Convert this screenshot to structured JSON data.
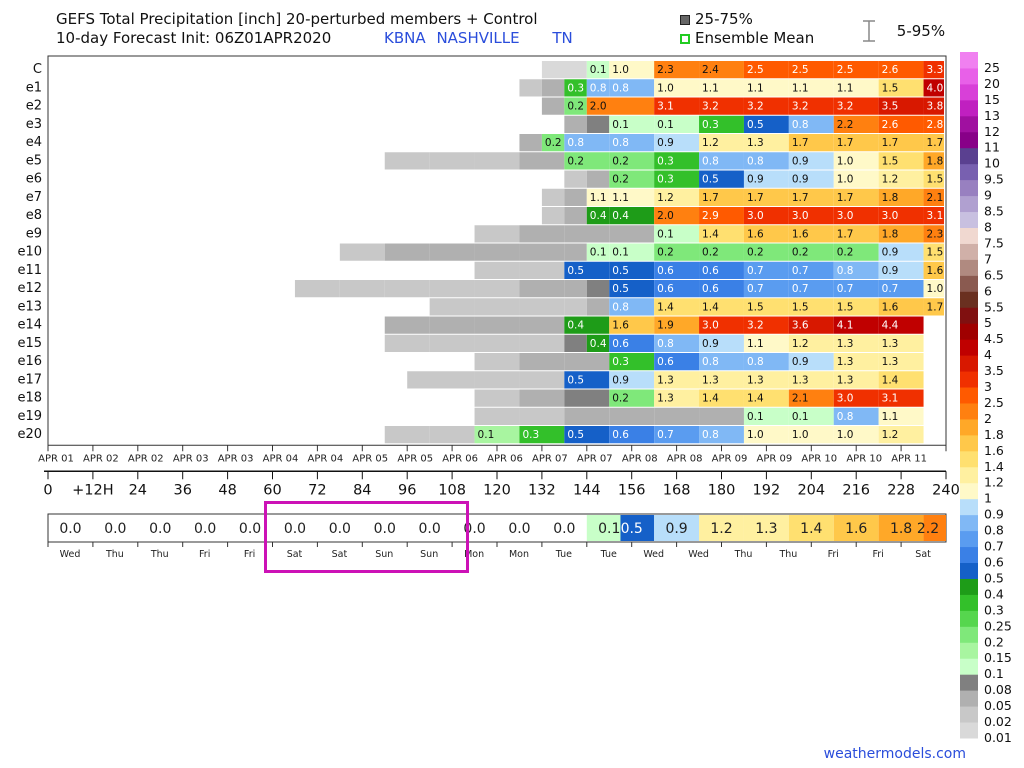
{
  "header": {
    "title_line1": "GEFS Total Precipitation [inch]  20-perturbed members + Control",
    "title_line2": "10-day Forecast Init: 06Z01APR2020",
    "station_code": "KBNA",
    "station_name": "NASHVILLE",
    "state": "TN"
  },
  "legend": {
    "iqr_label": "25-75%",
    "mean_label": "Ensemble Mean",
    "range_label": "5-95%"
  },
  "credit": "weathermodels.com",
  "chart_data": {
    "type": "heatmap",
    "members": [
      "C",
      "e1",
      "e2",
      "e3",
      "e4",
      "e5",
      "e6",
      "e7",
      "e8",
      "e9",
      "e10",
      "e11",
      "e12",
      "e13",
      "e14",
      "e15",
      "e16",
      "e17",
      "e18",
      "e19",
      "e20"
    ],
    "date_labels": [
      "APR 01",
      "APR 02",
      "APR 02",
      "APR 03",
      "APR 03",
      "APR 04",
      "APR 04",
      "APR 05",
      "APR 05",
      "APR 06",
      "APR 06",
      "APR 07",
      "APR 07",
      "APR 08",
      "APR 08",
      "APR 09",
      "APR 09",
      "APR 10",
      "APR 10",
      "APR 11"
    ],
    "hour_labels": [
      "0",
      "+12H",
      "24",
      "36",
      "48",
      "60",
      "72",
      "84",
      "96",
      "108",
      "120",
      "132",
      "144",
      "156",
      "168",
      "180",
      "192",
      "204",
      "216",
      "228",
      "240"
    ],
    "day_labels": [
      "Wed",
      "Thu",
      "Thu",
      "Fri",
      "Fri",
      "Sat",
      "Sat",
      "Sun",
      "Sun",
      "Mon",
      "Mon",
      "Tue",
      "Tue",
      "Wed",
      "Wed",
      "Thu",
      "Thu",
      "Fri",
      "Fri",
      "Sat"
    ],
    "mean_values": [
      "0.0",
      "0.0",
      "0.0",
      "0.0",
      "0.0",
      "0.0",
      "0.0",
      "0.0",
      "0.0",
      "0.0",
      "0.0",
      "0.0",
      "0.1",
      "0.5",
      "0.9",
      "1.2",
      "1.3",
      "1.4",
      "1.6",
      "1.8",
      "2.2"
    ],
    "mean_hours": [
      6,
      18,
      30,
      42,
      54,
      66,
      78,
      90,
      102,
      114,
      126,
      138,
      150,
      156,
      168,
      180,
      192,
      204,
      216,
      228,
      240
    ],
    "members_data": [
      {
        "id": "C",
        "cells": [
          [
            138,
            0.01
          ],
          [
            150,
            0.1
          ],
          [
            156,
            1.0
          ],
          [
            168,
            2.3
          ],
          [
            180,
            2.4
          ],
          [
            192,
            2.5
          ],
          [
            204,
            2.5
          ],
          [
            216,
            2.5
          ],
          [
            228,
            2.6
          ],
          [
            240,
            3.3
          ]
        ]
      },
      {
        "id": "e1",
        "cells": [
          [
            132,
            0.03
          ],
          [
            138,
            0.07
          ],
          [
            144,
            0.3
          ],
          [
            150,
            0.8
          ],
          [
            156,
            0.8
          ],
          [
            168,
            1.0
          ],
          [
            180,
            1.1
          ],
          [
            192,
            1.1
          ],
          [
            204,
            1.1
          ],
          [
            216,
            1.1
          ],
          [
            228,
            1.5
          ],
          [
            240,
            4.0
          ]
        ]
      },
      {
        "id": "e2",
        "cells": [
          [
            138,
            0.05
          ],
          [
            144,
            0.2
          ],
          [
            150,
            2.0
          ],
          [
            168,
            3.1
          ],
          [
            180,
            3.2
          ],
          [
            192,
            3.2
          ],
          [
            204,
            3.2
          ],
          [
            216,
            3.2
          ],
          [
            228,
            3.5
          ],
          [
            240,
            3.8
          ]
        ]
      },
      {
        "id": "e3",
        "cells": [
          [
            144,
            0.05
          ],
          [
            150,
            0.08
          ],
          [
            156,
            0.1
          ],
          [
            168,
            0.1
          ],
          [
            180,
            0.3
          ],
          [
            192,
            0.5
          ],
          [
            204,
            0.8
          ],
          [
            216,
            2.2
          ],
          [
            228,
            2.6
          ],
          [
            240,
            2.8
          ]
        ]
      },
      {
        "id": "e4",
        "cells": [
          [
            132,
            0.05
          ],
          [
            138,
            0.2
          ],
          [
            144,
            0.8
          ],
          [
            156,
            0.8
          ],
          [
            168,
            0.9
          ],
          [
            180,
            1.2
          ],
          [
            192,
            1.3
          ],
          [
            204,
            1.7
          ],
          [
            216,
            1.7
          ],
          [
            228,
            1.7
          ],
          [
            240,
            1.7
          ]
        ]
      },
      {
        "id": "e5",
        "cells": [
          [
            96,
            0.03
          ],
          [
            108,
            0.03
          ],
          [
            120,
            0.03
          ],
          [
            132,
            0.05
          ],
          [
            144,
            0.2
          ],
          [
            156,
            0.2
          ],
          [
            168,
            0.3
          ],
          [
            180,
            0.8
          ],
          [
            192,
            0.8
          ],
          [
            204,
            0.9
          ],
          [
            216,
            1.0
          ],
          [
            228,
            1.5
          ],
          [
            240,
            1.8
          ]
        ]
      },
      {
        "id": "e6",
        "cells": [
          [
            144,
            0.03
          ],
          [
            150,
            0.05
          ],
          [
            156,
            0.2
          ],
          [
            168,
            0.3
          ],
          [
            180,
            0.5
          ],
          [
            192,
            0.9
          ],
          [
            204,
            0.9
          ],
          [
            216,
            1.0
          ],
          [
            228,
            1.2
          ],
          [
            240,
            1.5
          ]
        ]
      },
      {
        "id": "e7",
        "cells": [
          [
            138,
            0.03
          ],
          [
            144,
            0.05
          ],
          [
            150,
            1.1
          ],
          [
            156,
            1.1
          ],
          [
            168,
            1.2
          ],
          [
            180,
            1.7
          ],
          [
            192,
            1.7
          ],
          [
            204,
            1.7
          ],
          [
            216,
            1.7
          ],
          [
            228,
            1.8
          ],
          [
            240,
            2.1
          ]
        ]
      },
      {
        "id": "e8",
        "cells": [
          [
            138,
            0.02
          ],
          [
            144,
            0.05
          ],
          [
            150,
            0.4
          ],
          [
            156,
            0.4
          ],
          [
            168,
            2.0
          ],
          [
            180,
            2.9
          ],
          [
            192,
            3.0
          ],
          [
            204,
            3.0
          ],
          [
            216,
            3.0
          ],
          [
            228,
            3.0
          ],
          [
            240,
            3.1
          ]
        ]
      },
      {
        "id": "e9",
        "cells": [
          [
            120,
            0.03
          ],
          [
            132,
            0.05
          ],
          [
            144,
            0.05
          ],
          [
            156,
            0.05
          ],
          [
            168,
            0.1
          ],
          [
            180,
            1.4
          ],
          [
            192,
            1.6
          ],
          [
            204,
            1.6
          ],
          [
            216,
            1.7
          ],
          [
            228,
            1.8
          ],
          [
            240,
            2.3
          ]
        ]
      },
      {
        "id": "e10",
        "cells": [
          [
            84,
            0.02
          ],
          [
            96,
            0.05
          ],
          [
            108,
            0.05
          ],
          [
            120,
            0.05
          ],
          [
            132,
            0.05
          ],
          [
            144,
            0.05
          ],
          [
            150,
            0.1
          ],
          [
            156,
            0.1
          ],
          [
            168,
            0.2
          ],
          [
            180,
            0.2
          ],
          [
            192,
            0.2
          ],
          [
            204,
            0.2
          ],
          [
            216,
            0.2
          ],
          [
            228,
            0.9
          ],
          [
            240,
            1.5
          ]
        ]
      },
      {
        "id": "e11",
        "cells": [
          [
            120,
            0.03
          ],
          [
            132,
            0.03
          ],
          [
            144,
            0.5
          ],
          [
            156,
            0.5
          ],
          [
            168,
            0.6
          ],
          [
            180,
            0.6
          ],
          [
            192,
            0.7
          ],
          [
            204,
            0.7
          ],
          [
            216,
            0.8
          ],
          [
            228,
            0.9
          ],
          [
            240,
            1.6
          ]
        ]
      },
      {
        "id": "e12",
        "cells": [
          [
            72,
            0.02
          ],
          [
            84,
            0.03
          ],
          [
            96,
            0.03
          ],
          [
            108,
            0.03
          ],
          [
            120,
            0.03
          ],
          [
            132,
            0.05
          ],
          [
            144,
            0.05
          ],
          [
            150,
            0.08
          ],
          [
            156,
            0.5
          ],
          [
            168,
            0.6
          ],
          [
            180,
            0.6
          ],
          [
            192,
            0.7
          ],
          [
            204,
            0.7
          ],
          [
            216,
            0.7
          ],
          [
            228,
            0.7
          ],
          [
            240,
            1.0
          ]
        ]
      },
      {
        "id": "e13",
        "cells": [
          [
            108,
            0.02
          ],
          [
            120,
            0.03
          ],
          [
            132,
            0.03
          ],
          [
            144,
            0.03
          ],
          [
            150,
            0.05
          ],
          [
            156,
            0.8
          ],
          [
            168,
            1.4
          ],
          [
            180,
            1.4
          ],
          [
            192,
            1.5
          ],
          [
            204,
            1.5
          ],
          [
            216,
            1.5
          ],
          [
            228,
            1.6
          ],
          [
            240,
            1.7
          ]
        ]
      },
      {
        "id": "e14",
        "cells": [
          [
            96,
            0.05
          ],
          [
            108,
            0.05
          ],
          [
            120,
            0.05
          ],
          [
            132,
            0.05
          ],
          [
            144,
            0.4
          ],
          [
            156,
            1.6
          ],
          [
            168,
            1.9
          ],
          [
            180,
            3.0
          ],
          [
            192,
            3.2
          ],
          [
            204,
            3.6
          ],
          [
            216,
            4.1
          ],
          [
            228,
            4.4
          ]
        ]
      },
      {
        "id": "e15",
        "cells": [
          [
            96,
            0.02
          ],
          [
            108,
            0.02
          ],
          [
            120,
            0.02
          ],
          [
            132,
            0.02
          ],
          [
            144,
            0.08
          ],
          [
            150,
            0.4
          ],
          [
            156,
            0.6
          ],
          [
            168,
            0.8
          ],
          [
            180,
            0.9
          ],
          [
            192,
            1.1
          ],
          [
            204,
            1.2
          ],
          [
            216,
            1.3
          ],
          [
            228,
            1.3
          ]
        ]
      },
      {
        "id": "e16",
        "cells": [
          [
            120,
            0.03
          ],
          [
            132,
            0.05
          ],
          [
            144,
            0.05
          ],
          [
            156,
            0.3
          ],
          [
            168,
            0.6
          ],
          [
            180,
            0.8
          ],
          [
            192,
            0.8
          ],
          [
            204,
            0.9
          ],
          [
            216,
            1.3
          ],
          [
            228,
            1.3
          ]
        ]
      },
      {
        "id": "e17",
        "cells": [
          [
            102,
            0.03
          ],
          [
            120,
            0.03
          ],
          [
            132,
            0.03
          ],
          [
            144,
            0.5
          ],
          [
            156,
            0.9
          ],
          [
            168,
            1.3
          ],
          [
            180,
            1.3
          ],
          [
            192,
            1.3
          ],
          [
            204,
            1.3
          ],
          [
            216,
            1.3
          ],
          [
            228,
            1.4
          ]
        ]
      },
      {
        "id": "e18",
        "cells": [
          [
            120,
            0.03
          ],
          [
            132,
            0.05
          ],
          [
            144,
            0.08
          ],
          [
            156,
            0.2
          ],
          [
            168,
            1.3
          ],
          [
            180,
            1.4
          ],
          [
            192,
            1.4
          ],
          [
            204,
            2.1
          ],
          [
            216,
            3.0
          ],
          [
            228,
            3.1
          ]
        ]
      },
      {
        "id": "e19",
        "cells": [
          [
            120,
            0.02
          ],
          [
            132,
            0.03
          ],
          [
            144,
            0.05
          ],
          [
            156,
            0.05
          ],
          [
            168,
            0.05
          ],
          [
            180,
            0.05
          ],
          [
            192,
            0.1
          ],
          [
            204,
            0.1
          ],
          [
            216,
            0.8
          ],
          [
            228,
            1.1
          ]
        ]
      },
      {
        "id": "e20",
        "cells": [
          [
            96,
            0.03
          ],
          [
            108,
            0.03
          ],
          [
            120,
            0.15
          ],
          [
            132,
            0.3
          ],
          [
            144,
            0.5
          ],
          [
            156,
            0.6
          ],
          [
            168,
            0.7
          ],
          [
            180,
            0.8
          ],
          [
            192,
            1.0
          ],
          [
            204,
            1.0
          ],
          [
            216,
            1.0
          ],
          [
            228,
            1.2
          ]
        ]
      }
    ],
    "colorbar": {
      "levels": [
        0.01,
        0.02,
        0.05,
        0.08,
        0.1,
        0.15,
        0.2,
        0.25,
        0.3,
        0.4,
        0.5,
        0.6,
        0.7,
        0.8,
        0.9,
        1,
        1.2,
        1.4,
        1.6,
        1.8,
        2,
        2.5,
        3,
        3.5,
        4,
        4.5,
        5,
        5.5,
        6,
        6.5,
        7,
        7.5,
        8,
        8.5,
        9,
        9.5,
        10,
        11,
        12,
        13,
        15,
        20,
        25
      ],
      "labels": [
        "0.01",
        "0.02",
        "0.05",
        "0.08",
        "0.1",
        "0.15",
        "0.2",
        "0.25",
        "0.3",
        "0.4",
        "0.5",
        "0.6",
        "0.7",
        "0.8",
        "0.9",
        "1",
        "1.2",
        "1.4",
        "1.6",
        "1.8",
        "2",
        "2.5",
        "3",
        "3.5",
        "4",
        "4.5",
        "5",
        "5.5",
        "6",
        "6.5",
        "7",
        "7.5",
        "8",
        "8.5",
        "9",
        "9.5",
        "10",
        "11",
        "12",
        "13",
        "15",
        "20",
        "25"
      ],
      "colors": [
        "#d9d9d9",
        "#c8c8c8",
        "#b0b0b0",
        "#808080",
        "#c8ffc8",
        "#a8f5a0",
        "#7fe87a",
        "#56d64e",
        "#33c02a",
        "#1e9c18",
        "#1560c8",
        "#3a80e6",
        "#5a9cf0",
        "#80b8f5",
        "#b8defa",
        "#fff9c8",
        "#fff0a0",
        "#ffe070",
        "#ffc84a",
        "#ffa828",
        "#ff8010",
        "#ff5a00",
        "#f03000",
        "#d81800",
        "#c00000",
        "#a00000",
        "#801010",
        "#6a3020",
        "#8a5a50",
        "#b08a80",
        "#d0b0a8",
        "#f0d8d0",
        "#c8c0e0",
        "#b0a0d0",
        "#9880c0",
        "#7860b0",
        "#5a4090",
        "#880088",
        "#a010a0",
        "#c020c0",
        "#d840d8",
        "#e860e8",
        "#f080f0"
      ]
    }
  }
}
